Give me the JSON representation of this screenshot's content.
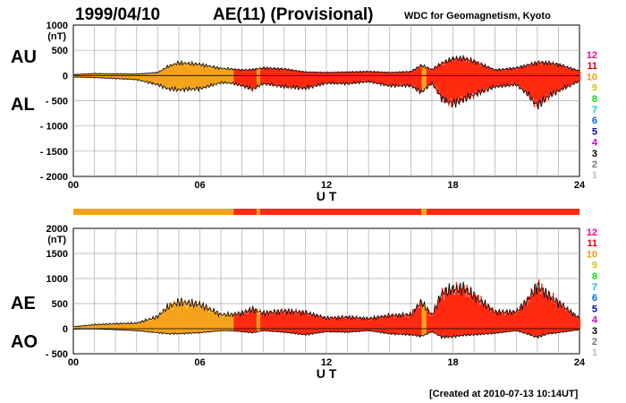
{
  "header": {
    "date": "1999/04/10",
    "title": "AE(11) (Provisional)",
    "institution": "WDC for Geomagnetism, Kyoto"
  },
  "footer": {
    "created": "[Created at 2010-07-13 10:14UT]"
  },
  "colors": {
    "scale": [
      "#bbbbbb",
      "#777777",
      "#000000",
      "#cc00cc",
      "#0000bb",
      "#0066ff",
      "#00cccc",
      "#00dd00",
      "#cccc00",
      "#ff9900",
      "#dd0000",
      "#ff0088"
    ],
    "active_orange": "#f5a31a",
    "active_red": "#ff2a10",
    "grid": "#aaaaaa"
  },
  "activity_scale": {
    "labels": [
      "12",
      "11",
      "10",
      "9",
      "8",
      "7",
      "6",
      "5",
      "4",
      "3",
      "2",
      "1"
    ]
  },
  "chart_data": [
    {
      "type": "area",
      "panel": "AU/AL",
      "ylabel_top": "AU",
      "ylabel_bottom": "AL",
      "unit": "(nT)",
      "xlabel": "U T",
      "xlim": [
        0,
        24
      ],
      "ylim": [
        -2000,
        1000
      ],
      "xticks": [
        "00",
        "06",
        "12",
        "18",
        "24"
      ],
      "yticks": [
        {
          "v": 1000,
          "label": "1000"
        },
        {
          "v": 500,
          "label": "500"
        },
        {
          "v": 0,
          "label": "0"
        },
        {
          "v": -500,
          "label": "- 500"
        },
        {
          "v": -1000,
          "label": "- 1000"
        },
        {
          "v": -1500,
          "label": "- 1500"
        },
        {
          "v": -2000,
          "label": "- 2000"
        }
      ],
      "series": [
        {
          "values_hour": [
            0,
            1,
            2,
            3,
            4,
            4.5,
            5,
            6,
            7,
            7.5,
            8,
            8.5,
            9,
            10,
            11,
            12,
            13,
            14,
            15,
            16,
            16.5,
            17,
            17.5,
            18,
            18.5,
            19,
            20,
            21,
            21.5,
            22,
            22.5,
            23,
            24
          ],
          "upper": [
            20,
            40,
            35,
            30,
            60,
            180,
            250,
            220,
            140,
            130,
            110,
            120,
            150,
            130,
            70,
            60,
            70,
            80,
            60,
            80,
            200,
            120,
            250,
            330,
            340,
            280,
            110,
            150,
            200,
            260,
            250,
            220,
            90
          ],
          "lower": [
            -30,
            -40,
            -60,
            -80,
            -180,
            -260,
            -280,
            -260,
            -140,
            -150,
            -200,
            -270,
            -160,
            -220,
            -250,
            -150,
            -160,
            -120,
            -200,
            -200,
            -330,
            -150,
            -470,
            -560,
            -470,
            -380,
            -220,
            -180,
            -350,
            -600,
            -420,
            -300,
            -110
          ]
        }
      ]
    },
    {
      "type": "area",
      "panel": "AE/AO",
      "ylabel_top": "AE",
      "ylabel_bottom": "AO",
      "unit": "(nT)",
      "xlabel": "U T",
      "xlim": [
        0,
        24
      ],
      "ylim": [
        -500,
        2000
      ],
      "xticks": [
        "00",
        "06",
        "12",
        "18",
        "24"
      ],
      "yticks": [
        {
          "v": 2000,
          "label": "2000"
        },
        {
          "v": 1500,
          "label": "1500"
        },
        {
          "v": 1000,
          "label": "1000"
        },
        {
          "v": 500,
          "label": "500"
        },
        {
          "v": 0,
          "label": "0"
        },
        {
          "v": -500,
          "label": "- 500"
        }
      ],
      "series": [
        {
          "values_hour": [
            0,
            1,
            2,
            3,
            4,
            4.5,
            5,
            6,
            7,
            7.5,
            8,
            8.5,
            9,
            10,
            11,
            12,
            13,
            14,
            15,
            16,
            16.5,
            17,
            17.5,
            18,
            18.5,
            19,
            20,
            21,
            21.5,
            22,
            22.5,
            23,
            24
          ],
          "upper": [
            40,
            80,
            100,
            110,
            240,
            440,
            530,
            480,
            280,
            280,
            310,
            390,
            310,
            350,
            320,
            210,
            230,
            200,
            260,
            280,
            530,
            270,
            720,
            780,
            810,
            660,
            330,
            330,
            550,
            860,
            670,
            520,
            200
          ],
          "lower": [
            -10,
            -5,
            -20,
            -40,
            -80,
            -100,
            -100,
            -80,
            -40,
            -40,
            -60,
            -80,
            -40,
            -70,
            -120,
            -60,
            -70,
            -40,
            -100,
            -120,
            -150,
            -60,
            -170,
            -160,
            -130,
            -120,
            -90,
            -40,
            -100,
            -170,
            -100,
            -80,
            -20
          ]
        }
      ]
    }
  ],
  "activity_bar": [
    {
      "from": 0,
      "to": 7.6,
      "level": "orange"
    },
    {
      "from": 7.6,
      "to": 8.7,
      "level": "red"
    },
    {
      "from": 8.7,
      "to": 8.85,
      "level": "orange"
    },
    {
      "from": 8.85,
      "to": 16.5,
      "level": "red"
    },
    {
      "from": 16.5,
      "to": 16.75,
      "level": "orange"
    },
    {
      "from": 16.75,
      "to": 24,
      "level": "red"
    }
  ]
}
